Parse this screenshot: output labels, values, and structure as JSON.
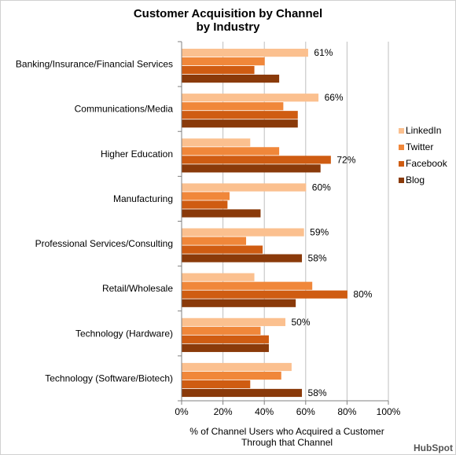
{
  "chart_data": {
    "type": "bar",
    "orientation": "horizontal",
    "title": [
      "Customer Acquisition by Channel",
      "by Industry"
    ],
    "xlabel": [
      "% of Channel Users who Acquired a Customer",
      "Through that Channel"
    ],
    "ylabel": "",
    "xlim": [
      0,
      100
    ],
    "xticks": [
      "0%",
      "20%",
      "40%",
      "60%",
      "80%",
      "100%"
    ],
    "grid": true,
    "legend_position": "right",
    "categories": [
      "Banking/Insurance/Financial Services",
      "Communications/Media",
      "Higher Education",
      "Manufacturing",
      "Professional Services/Consulting",
      "Retail/Wholesale",
      "Technology (Hardware)",
      "Technology (Software/Biotech)"
    ],
    "series": [
      {
        "name": "LinkedIn",
        "color": "#fbc08f",
        "values": [
          61,
          66,
          33,
          60,
          59,
          35,
          50,
          53
        ]
      },
      {
        "name": "Twitter",
        "color": "#f0873a",
        "values": [
          40,
          49,
          47,
          23,
          31,
          63,
          38,
          48
        ]
      },
      {
        "name": "Facebook",
        "color": "#cf5c12",
        "values": [
          35,
          56,
          72,
          22,
          39,
          80,
          42,
          33
        ]
      },
      {
        "name": "Blog",
        "color": "#8a3a0a",
        "values": [
          47,
          56,
          67,
          38,
          58,
          55,
          42,
          58
        ]
      }
    ],
    "data_labels": [
      {
        "category": 0,
        "series": 0,
        "text": "61%"
      },
      {
        "category": 1,
        "series": 0,
        "text": "66%"
      },
      {
        "category": 2,
        "series": 2,
        "text": "72%"
      },
      {
        "category": 3,
        "series": 0,
        "text": "60%"
      },
      {
        "category": 4,
        "series": 0,
        "text": "59%"
      },
      {
        "category": 4,
        "series": 3,
        "text": "58%"
      },
      {
        "category": 5,
        "series": 2,
        "text": "80%"
      },
      {
        "category": 6,
        "series": 0,
        "text": "50%"
      },
      {
        "category": 7,
        "series": 3,
        "text": "58%"
      }
    ]
  },
  "branding": {
    "logo_text": "HubSpot"
  }
}
